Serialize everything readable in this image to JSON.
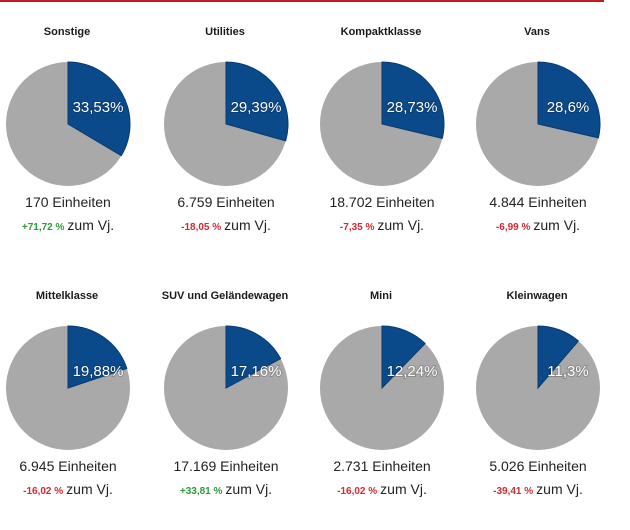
{
  "colors": {
    "accent": "#c01b25",
    "share": "#0b4a8a",
    "rest": "#a9a9a9",
    "positive": "#2e9a3a",
    "negative": "#d22a30"
  },
  "suffix_vj": "zum Vj.",
  "chart_data": [
    {
      "type": "pie",
      "title": "Sonstige",
      "share_percent": 33.53,
      "share_label": "33,53%",
      "units": "170 Einheiten",
      "change": "+71,72 %",
      "change_sign": "positive"
    },
    {
      "type": "pie",
      "title": "Utilities",
      "share_percent": 29.39,
      "share_label": "29,39%",
      "units": "6.759 Einheiten",
      "change": "-18,05 %",
      "change_sign": "negative"
    },
    {
      "type": "pie",
      "title": "Kompaktklasse",
      "share_percent": 28.73,
      "share_label": "28,73%",
      "units": "18.702 Einheiten",
      "change": "-7,35 %",
      "change_sign": "negative"
    },
    {
      "type": "pie",
      "title": "Vans",
      "share_percent": 28.6,
      "share_label": "28,6%",
      "units": "4.844 Einheiten",
      "change": "-6,99 %",
      "change_sign": "negative"
    },
    {
      "type": "pie",
      "title": "Mittelklasse",
      "share_percent": 19.88,
      "share_label": "19,88%",
      "units": "6.945 Einheiten",
      "change": "-16,02 %",
      "change_sign": "negative"
    },
    {
      "type": "pie",
      "title": "SUV und Geländewagen",
      "share_percent": 17.16,
      "share_label": "17,16%",
      "units": "17.169 Einheiten",
      "change": "+33,81 %",
      "change_sign": "positive"
    },
    {
      "type": "pie",
      "title": "Mini",
      "share_percent": 12.24,
      "share_label": "12,24%",
      "units": "2.731 Einheiten",
      "change": "-16,02 %",
      "change_sign": "negative"
    },
    {
      "type": "pie",
      "title": "Kleinwagen",
      "share_percent": 11.3,
      "share_label": "11,3%",
      "units": "5.026 Einheiten",
      "change": "-39,41 %",
      "change_sign": "negative"
    }
  ]
}
